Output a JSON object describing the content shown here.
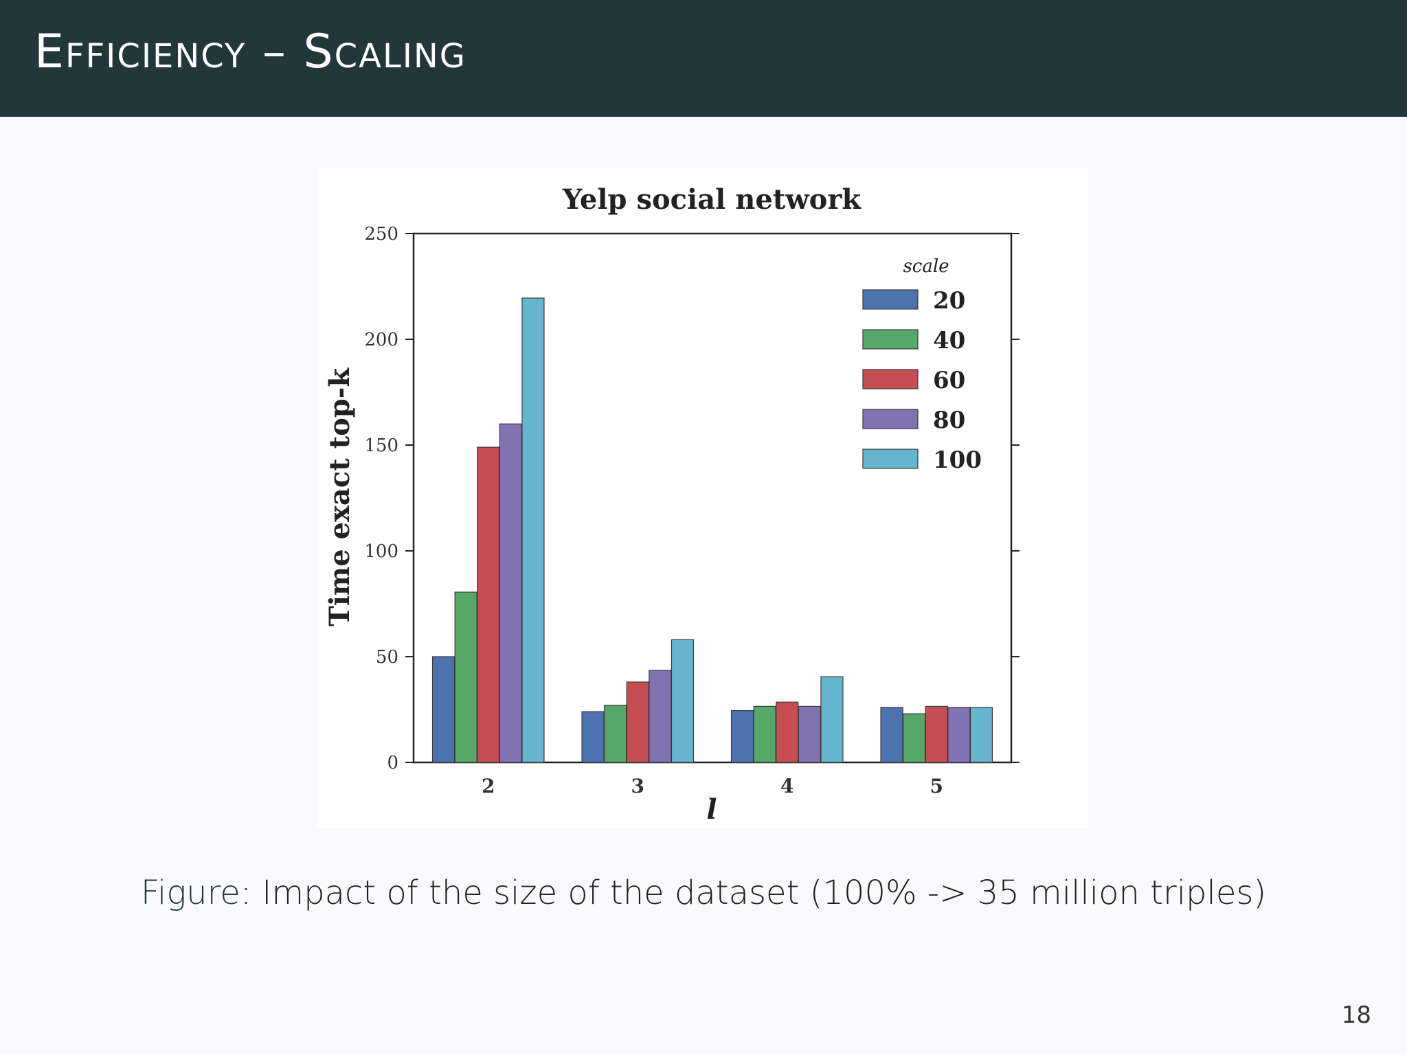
{
  "slide": {
    "title": "Efficiency – Scaling",
    "caption_prefix": "Figure:",
    "caption": "Impact of the size of the dataset (100% -> 35 million triples)",
    "page_number": "18"
  },
  "colors": {
    "header_bg": "#23373b",
    "series": [
      "#4c72b0",
      "#55a868",
      "#c44e52",
      "#8172b2",
      "#64b5cd"
    ]
  },
  "chart_data": {
    "type": "bar",
    "title": "Yelp social network",
    "xlabel": "l",
    "ylabel": "Time exact top-k",
    "categories": [
      "2",
      "3",
      "4",
      "5"
    ],
    "ylim": [
      0,
      250
    ],
    "yticks": [
      0,
      50,
      100,
      150,
      200,
      250
    ],
    "legend_title": "scale",
    "legend_placement": "top-right",
    "grid": false,
    "series": [
      {
        "name": "20",
        "values": [
          50,
          24,
          24.5,
          26
        ]
      },
      {
        "name": "40",
        "values": [
          80.5,
          27,
          26.5,
          23
        ]
      },
      {
        "name": "60",
        "values": [
          149,
          38,
          28.5,
          26.5
        ]
      },
      {
        "name": "80",
        "values": [
          160,
          43.5,
          26.5,
          26
        ]
      },
      {
        "name": "100",
        "values": [
          219.5,
          58,
          40.5,
          26
        ]
      }
    ]
  }
}
